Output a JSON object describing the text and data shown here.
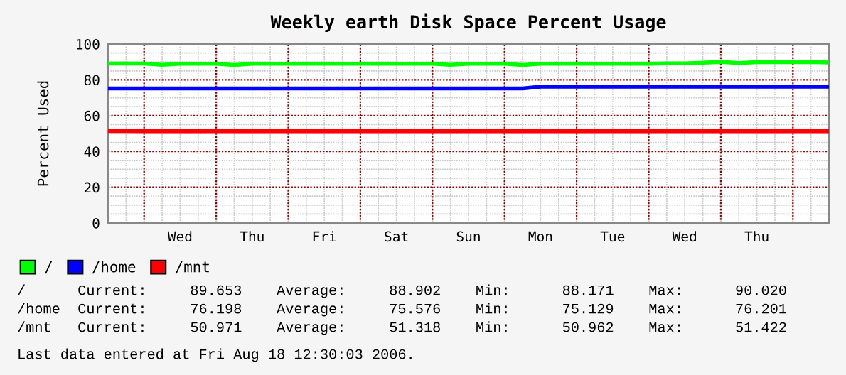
{
  "chart_data": {
    "type": "line",
    "title": "Weekly earth Disk Space Percent Usage",
    "ylabel": "Percent Used",
    "categories": [
      null,
      null,
      null,
      null,
      "Wed",
      null,
      null,
      null,
      "Thu",
      null,
      null,
      null,
      "Fri",
      null,
      null,
      null,
      "Sat",
      null,
      null,
      null,
      "Sun",
      null,
      null,
      null,
      "Mon",
      null,
      null,
      null,
      "Tue",
      null,
      null,
      null,
      "Wed",
      null,
      null,
      null,
      "Thu",
      null,
      null,
      null,
      null
    ],
    "ylim": [
      0,
      100
    ],
    "yticks": [
      0,
      20,
      40,
      60,
      80,
      100
    ],
    "grid": true,
    "legend": "bottom left",
    "marker": "none",
    "line_style": "solid",
    "series": [
      {
        "name": "/",
        "color": "#00ff00",
        "values": [
          89.1,
          89.1,
          89.1,
          88.4,
          89.0,
          89.0,
          89.0,
          88.3,
          89.0,
          89.0,
          89.0,
          89.0,
          89.0,
          89.0,
          89.0,
          89.0,
          89.0,
          89.0,
          89.0,
          88.4,
          89.0,
          89.0,
          89.0,
          88.3,
          89.0,
          89.0,
          89.0,
          89.0,
          89.0,
          89.0,
          89.0,
          89.2,
          89.2,
          89.6,
          90.0,
          89.4,
          89.9,
          89.9,
          89.9,
          90.0,
          89.7
        ]
      },
      {
        "name": "/home",
        "color": "#0000ff",
        "values": [
          75.2,
          75.2,
          75.2,
          75.2,
          75.2,
          75.2,
          75.2,
          75.2,
          75.2,
          75.2,
          75.2,
          75.2,
          75.2,
          75.2,
          75.2,
          75.2,
          75.2,
          75.2,
          75.2,
          75.2,
          75.2,
          75.2,
          75.2,
          75.2,
          76.2,
          76.2,
          76.2,
          76.2,
          76.2,
          76.2,
          76.2,
          76.2,
          76.2,
          76.2,
          76.2,
          76.2,
          76.2,
          76.2,
          76.2,
          76.2,
          76.2
        ]
      },
      {
        "name": "/mnt",
        "color": "#ff0000",
        "values": [
          51.4,
          51.4,
          51.3,
          51.3,
          51.3,
          51.3,
          51.3,
          51.3,
          51.3,
          51.3,
          51.3,
          51.3,
          51.3,
          51.3,
          51.3,
          51.3,
          51.3,
          51.3,
          51.3,
          51.3,
          51.3,
          51.3,
          51.3,
          51.3,
          51.3,
          51.3,
          51.3,
          51.3,
          51.3,
          51.3,
          51.3,
          51.3,
          51.3,
          51.3,
          51.3,
          51.3,
          51.3,
          51.3,
          51.3,
          51.3,
          51.3
        ]
      }
    ],
    "annotations": [
      "/      Current:     89.653    Average:     88.902    Min:      88.171    Max:      90.020",
      "/home  Current:     76.198    Average:     75.576    Min:      75.129    Max:      76.201",
      "/mnt   Current:     50.971    Average:     51.318    Min:      50.962    Max:      51.422",
      "Last data entered at Fri Aug 18 12:30:03 2006."
    ]
  }
}
